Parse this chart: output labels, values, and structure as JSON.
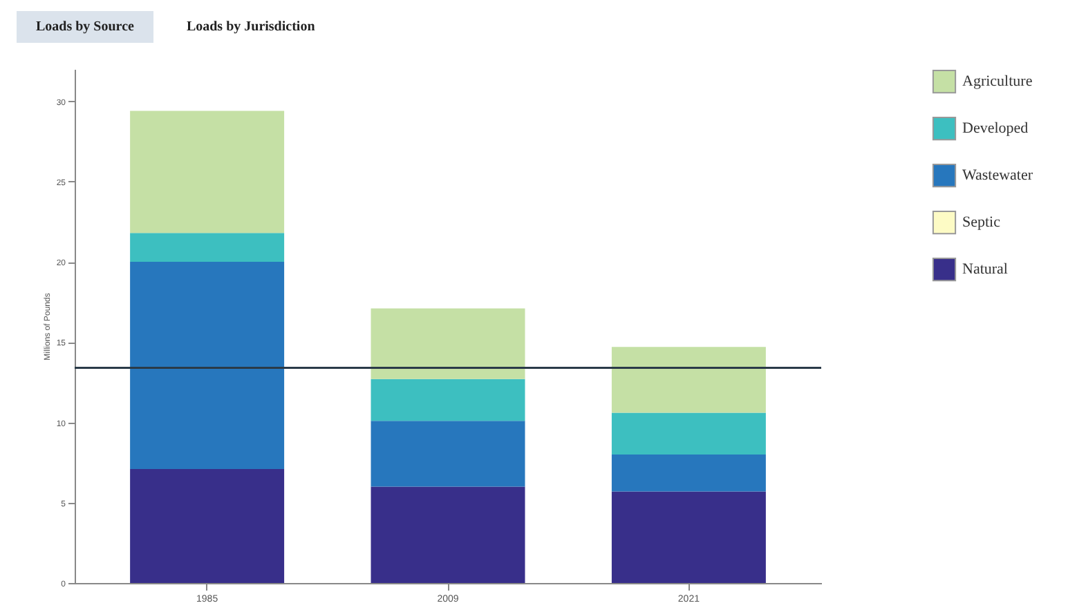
{
  "chart_data": {
    "type": "bar",
    "stacked": true,
    "annotations": [
      "Loads by Source",
      "Loads by Jurisdiction"
    ],
    "ylabel": "Millions of Pounds",
    "categories": [
      "1985",
      "2009",
      "2021"
    ],
    "series": [
      {
        "name": "Natural",
        "color": "#382f8a",
        "values": [
          7.1,
          6.0,
          5.7
        ]
      },
      {
        "name": "Septic",
        "color": "#fdfbc5",
        "values": [
          0,
          0,
          0
        ]
      },
      {
        "name": "Wastewater",
        "color": "#2777bd",
        "values": [
          12.9,
          4.1,
          2.3
        ]
      },
      {
        "name": "Developed",
        "color": "#3dbfc0",
        "values": [
          1.8,
          2.6,
          2.6
        ]
      },
      {
        "name": "Agriculture",
        "color": "#c5e0a5",
        "values": [
          7.6,
          4.4,
          4.1
        ]
      }
    ],
    "ylim": [
      0,
      32
    ],
    "yticks": [
      0,
      5,
      10,
      15,
      20,
      25,
      30
    ],
    "grid": false,
    "legend": "top right",
    "ref_lines": [
      {
        "axis": "y",
        "value": 13.4,
        "color": "#2a3a48"
      }
    ]
  }
}
